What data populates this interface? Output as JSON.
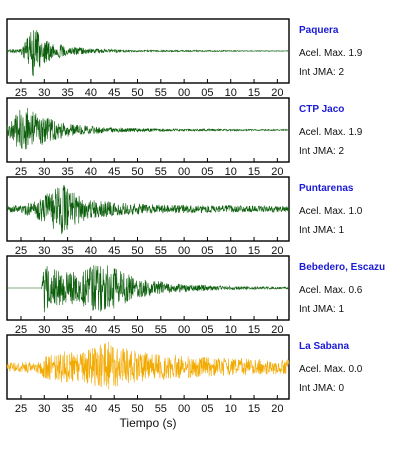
{
  "chart_data": {
    "type": "line",
    "xlabel": "Tiempo (s)",
    "x_tick_labels": [
      "25",
      "30",
      "35",
      "40",
      "45",
      "50",
      "55",
      "00",
      "05",
      "10",
      "15",
      "20"
    ],
    "grid": false,
    "panels": [
      {
        "station": "Paquera",
        "acel_max": "Acel. Max. 1.9",
        "int_jma": "Int JMA: 2",
        "color": "#0b5e0b",
        "envelope": [
          {
            "t": 22,
            "a": 0.06
          },
          {
            "t": 25,
            "a": 0.08
          },
          {
            "t": 26.5,
            "a": 0.5
          },
          {
            "t": 27.5,
            "a": 0.9
          },
          {
            "t": 29,
            "a": 0.6
          },
          {
            "t": 31,
            "a": 0.35
          },
          {
            "t": 34,
            "a": 0.2
          },
          {
            "t": 40,
            "a": 0.08
          },
          {
            "t": 50,
            "a": 0.03
          },
          {
            "t": 83,
            "a": 0.01
          }
        ]
      },
      {
        "station": "CTP Jaco",
        "acel_max": "Acel. Max. 1.9",
        "int_jma": "Int JMA: 2",
        "color": "#0b5e0b",
        "envelope": [
          {
            "t": 22,
            "a": 0.2
          },
          {
            "t": 23.5,
            "a": 0.4
          },
          {
            "t": 25,
            "a": 0.85
          },
          {
            "t": 27,
            "a": 0.75
          },
          {
            "t": 29,
            "a": 0.55
          },
          {
            "t": 32,
            "a": 0.35
          },
          {
            "t": 36,
            "a": 0.2
          },
          {
            "t": 45,
            "a": 0.08
          },
          {
            "t": 60,
            "a": 0.04
          },
          {
            "t": 83,
            "a": 0.02
          }
        ]
      },
      {
        "station": "Puntarenas",
        "acel_max": "Acel. Max. 1.0",
        "int_jma": "Int JMA: 1",
        "color": "#0b5e0b",
        "envelope": [
          {
            "t": 22,
            "a": 0.1
          },
          {
            "t": 26,
            "a": 0.2
          },
          {
            "t": 29,
            "a": 0.4
          },
          {
            "t": 32,
            "a": 0.7
          },
          {
            "t": 34,
            "a": 0.9
          },
          {
            "t": 36,
            "a": 0.6
          },
          {
            "t": 40,
            "a": 0.35
          },
          {
            "t": 46,
            "a": 0.22
          },
          {
            "t": 55,
            "a": 0.15
          },
          {
            "t": 83,
            "a": 0.1
          }
        ]
      },
      {
        "station": "Bebedero, Escazu",
        "acel_max": "Acel. Max. 0.6",
        "int_jma": "Int JMA: 1",
        "color": "#0b5e0b",
        "envelope": [
          {
            "t": 22,
            "a": 0.0
          },
          {
            "t": 29.4,
            "a": 0.0
          },
          {
            "t": 30,
            "a": 0.85
          },
          {
            "t": 31,
            "a": 0.7
          },
          {
            "t": 35,
            "a": 0.55
          },
          {
            "t": 39,
            "a": 0.65
          },
          {
            "t": 42,
            "a": 0.95
          },
          {
            "t": 45,
            "a": 0.7
          },
          {
            "t": 50,
            "a": 0.35
          },
          {
            "t": 58,
            "a": 0.15
          },
          {
            "t": 70,
            "a": 0.06
          },
          {
            "t": 83,
            "a": 0.03
          }
        ]
      },
      {
        "station": "La Sabana",
        "acel_max": "Acel. Max. 0.0",
        "int_jma": "Int JMA: 0",
        "color": "#f2a900",
        "envelope": [
          {
            "t": 22,
            "a": 0.15
          },
          {
            "t": 28,
            "a": 0.2
          },
          {
            "t": 30,
            "a": 0.4
          },
          {
            "t": 34,
            "a": 0.55
          },
          {
            "t": 38,
            "a": 0.5
          },
          {
            "t": 41,
            "a": 0.75
          },
          {
            "t": 43,
            "a": 0.95
          },
          {
            "t": 46,
            "a": 0.7
          },
          {
            "t": 52,
            "a": 0.5
          },
          {
            "t": 60,
            "a": 0.4
          },
          {
            "t": 70,
            "a": 0.3
          },
          {
            "t": 83,
            "a": 0.25
          }
        ]
      }
    ]
  }
}
